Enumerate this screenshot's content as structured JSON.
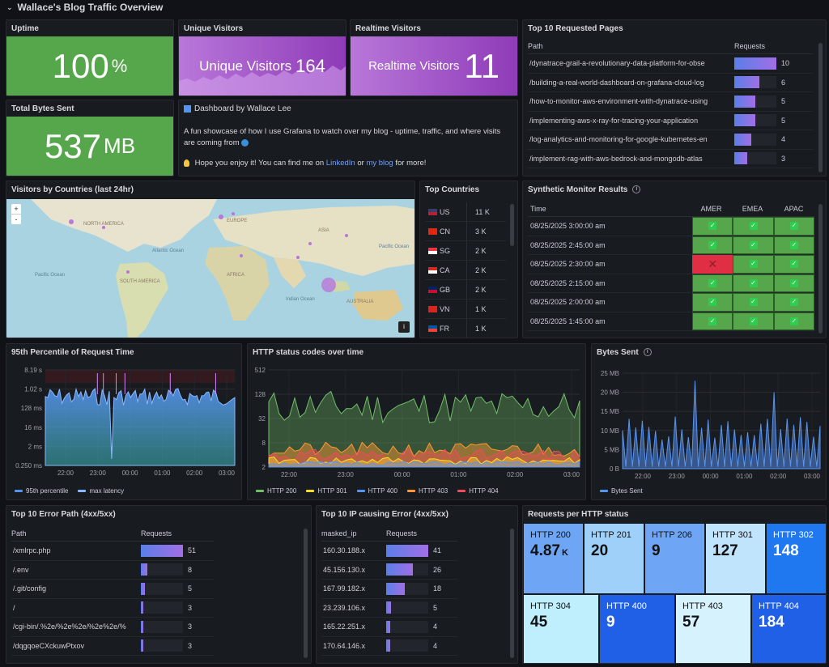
{
  "row_title": "Wallace's Blog Traffic Overview",
  "uptime": {
    "title": "Uptime",
    "value": "100",
    "unit": "%"
  },
  "unique": {
    "title": "Unique Visitors",
    "label": "Unique Visitors",
    "value": "164"
  },
  "realtime": {
    "title": "Realtime Visitors",
    "label": "Realtime Visitors",
    "value": "11"
  },
  "bytes_total": {
    "title": "Total Bytes Sent",
    "value": "537",
    "unit": "MB"
  },
  "text_panel": {
    "title": "Dashboard by Wallace Lee",
    "line1": "A fun showcase of how I use Grafana to watch over my blog - uptime, traffic, and where visits are coming from",
    "line2_pre": "Hope you enjoy it! You can find me on",
    "link1": "LinkedIn",
    "or": "or",
    "link2": "my blog",
    "line2_post": "for more!"
  },
  "top_pages": {
    "title": "Top 10 Requested Pages",
    "col_path": "Path",
    "col_req": "Requests",
    "rows": [
      {
        "path": "/dynatrace-grail-a-revolutionary-data-platform-for-obse",
        "req": "10",
        "v": 10
      },
      {
        "path": "/building-a-real-world-dashboard-on-grafana-cloud-log",
        "req": "6",
        "v": 6
      },
      {
        "path": "/how-to-monitor-aws-environment-with-dynatrace-using",
        "req": "5",
        "v": 5
      },
      {
        "path": "/implementing-aws-x-ray-for-tracing-your-application",
        "req": "5",
        "v": 5
      },
      {
        "path": "/log-analytics-and-monitoring-for-google-kubernetes-en",
        "req": "4",
        "v": 4
      },
      {
        "path": "/implement-rag-with-aws-bedrock-and-mongodb-atlas",
        "req": "3",
        "v": 3
      }
    ]
  },
  "map": {
    "title": "Visitors by Countries (last 24hr)",
    "zoom_in": "+",
    "zoom_out": "-",
    "info": "i",
    "labels": {
      "na": "NORTH AMERICA",
      "europe": "EUROPE",
      "asia": "ASIA",
      "africa": "AFRICA",
      "sa": "SOUTH AMERICA",
      "australia": "AUSTRALIA",
      "atlantic": "Atlantic Ocean",
      "pacific": "Pacific Ocean",
      "indian": "Indian Ocean",
      "pacific2": "Pacific Ocean"
    }
  },
  "countries": {
    "title": "Top Countries",
    "rows": [
      {
        "code": "US",
        "val": "11 K",
        "c1": "#3c3b6e",
        "c2": "#b22234"
      },
      {
        "code": "CN",
        "val": "3 K",
        "c1": "#de2910",
        "c2": "#de2910"
      },
      {
        "code": "SG",
        "val": "2 K",
        "c1": "#ef3340",
        "c2": "#ffffff"
      },
      {
        "code": "CA",
        "val": "2 K",
        "c1": "#d52b1e",
        "c2": "#ffffff"
      },
      {
        "code": "GB",
        "val": "2 K",
        "c1": "#012169",
        "c2": "#c8102e"
      },
      {
        "code": "VN",
        "val": "1 K",
        "c1": "#da251d",
        "c2": "#da251d"
      },
      {
        "code": "FR",
        "val": "1 K",
        "c1": "#0055a4",
        "c2": "#ef4135"
      }
    ]
  },
  "synthetic": {
    "title": "Synthetic Monitor Results",
    "col_time": "Time",
    "cols": [
      "AMER",
      "EMEA",
      "APAC"
    ],
    "rows": [
      {
        "time": "08/25/2025 3:00:00 am",
        "s": [
          "ok",
          "ok",
          "ok"
        ]
      },
      {
        "time": "08/25/2025 2:45:00 am",
        "s": [
          "ok",
          "ok",
          "ok"
        ]
      },
      {
        "time": "08/25/2025 2:30:00 am",
        "s": [
          "fail",
          "ok",
          "ok"
        ]
      },
      {
        "time": "08/25/2025 2:15:00 am",
        "s": [
          "ok",
          "ok",
          "ok"
        ]
      },
      {
        "time": "08/25/2025 2:00:00 am",
        "s": [
          "ok",
          "ok",
          "ok"
        ]
      },
      {
        "time": "08/25/2025 1:45:00 am",
        "s": [
          "ok",
          "ok",
          "ok"
        ]
      }
    ]
  },
  "p95": {
    "title": "95th Percentile of Request Time",
    "yticks": [
      "8.19 s",
      "1.02 s",
      "128 ms",
      "16 ms",
      "2 ms",
      "0.250 ms"
    ],
    "xticks": [
      "22:00",
      "23:00",
      "00:00",
      "01:00",
      "02:00",
      "03:00"
    ],
    "legend": [
      {
        "name": "95th percentile",
        "color": "#5794f2"
      },
      {
        "name": "max latency",
        "color": "#8ab8ff"
      }
    ]
  },
  "http_codes": {
    "title": "HTTP status codes over time",
    "yticks": [
      "512",
      "128",
      "32",
      "8",
      "2"
    ],
    "xticks": [
      "22:00",
      "23:00",
      "00:00",
      "01:00",
      "02:00",
      "03:00"
    ],
    "legend": [
      {
        "name": "HTTP 200",
        "color": "#73bf69"
      },
      {
        "name": "HTTP 301",
        "color": "#fade2a"
      },
      {
        "name": "HTTP 400",
        "color": "#5794f2"
      },
      {
        "name": "HTTP 403",
        "color": "#ff9830"
      },
      {
        "name": "HTTP 404",
        "color": "#f2495c"
      }
    ]
  },
  "bytes_sent": {
    "title": "Bytes Sent",
    "yticks": [
      "25 MB",
      "20 MB",
      "15 MB",
      "10 MB",
      "5 MB",
      "0 B"
    ],
    "xticks": [
      "22:00",
      "23:00",
      "00:00",
      "01:00",
      "02:00",
      "03:00"
    ],
    "legend": [
      {
        "name": "Bytes Sent",
        "color": "#5794f2"
      }
    ]
  },
  "error_paths": {
    "title": "Top 10 Error Path (4xx/5xx)",
    "col_path": "Path",
    "col_req": "Requests",
    "rows": [
      {
        "path": "/xmlrpc.php",
        "req": "51",
        "v": 51
      },
      {
        "path": "/.env",
        "req": "8",
        "v": 8
      },
      {
        "path": "/.git/config",
        "req": "5",
        "v": 5
      },
      {
        "path": "/",
        "req": "3",
        "v": 3
      },
      {
        "path": "/cgi-bin/.%2e/%2e%2e/%2e%2e/%",
        "req": "3",
        "v": 3
      },
      {
        "path": "/dqgqoeCXckuwPtxov",
        "req": "3",
        "v": 3
      }
    ]
  },
  "error_ips": {
    "title": "Top 10 IP causing Error (4xx/5xx)",
    "col_ip": "masked_ip",
    "col_req": "Requests",
    "rows": [
      {
        "ip": "160.30.188.x",
        "req": "41",
        "v": 41
      },
      {
        "ip": "45.156.130.x",
        "req": "26",
        "v": 26
      },
      {
        "ip": "167.99.182.x",
        "req": "18",
        "v": 18
      },
      {
        "ip": "23.239.106.x",
        "req": "5",
        "v": 5
      },
      {
        "ip": "165.22.251.x",
        "req": "4",
        "v": 4
      },
      {
        "ip": "170.64.146.x",
        "req": "4",
        "v": 4
      }
    ]
  },
  "http_tiles": {
    "title": "Requests per HTTP status",
    "tiles": [
      {
        "label": "HTTP 200",
        "value": "4.87",
        "unit": "K",
        "bg": "#6ea6f5"
      },
      {
        "label": "HTTP 201",
        "value": "20",
        "unit": "",
        "bg": "#9fd0fa"
      },
      {
        "label": "HTTP 206",
        "value": "9",
        "unit": "",
        "bg": "#6ea6f5"
      },
      {
        "label": "HTTP 301",
        "value": "127",
        "unit": "",
        "bg": "#bfe4fb"
      },
      {
        "label": "HTTP 302",
        "value": "148",
        "unit": "",
        "bg": "#1f78f0"
      },
      {
        "label": "HTTP 304",
        "value": "45",
        "unit": "",
        "bg": "#bfeefd"
      },
      {
        "label": "HTTP 400",
        "value": "9",
        "unit": "",
        "bg": "#1f60e6"
      },
      {
        "label": "HTTP 403",
        "value": "57",
        "unit": "",
        "bg": "#d5f2fd"
      },
      {
        "label": "HTTP 404",
        "value": "184",
        "unit": "",
        "bg": "#1f60e6"
      }
    ]
  }
}
